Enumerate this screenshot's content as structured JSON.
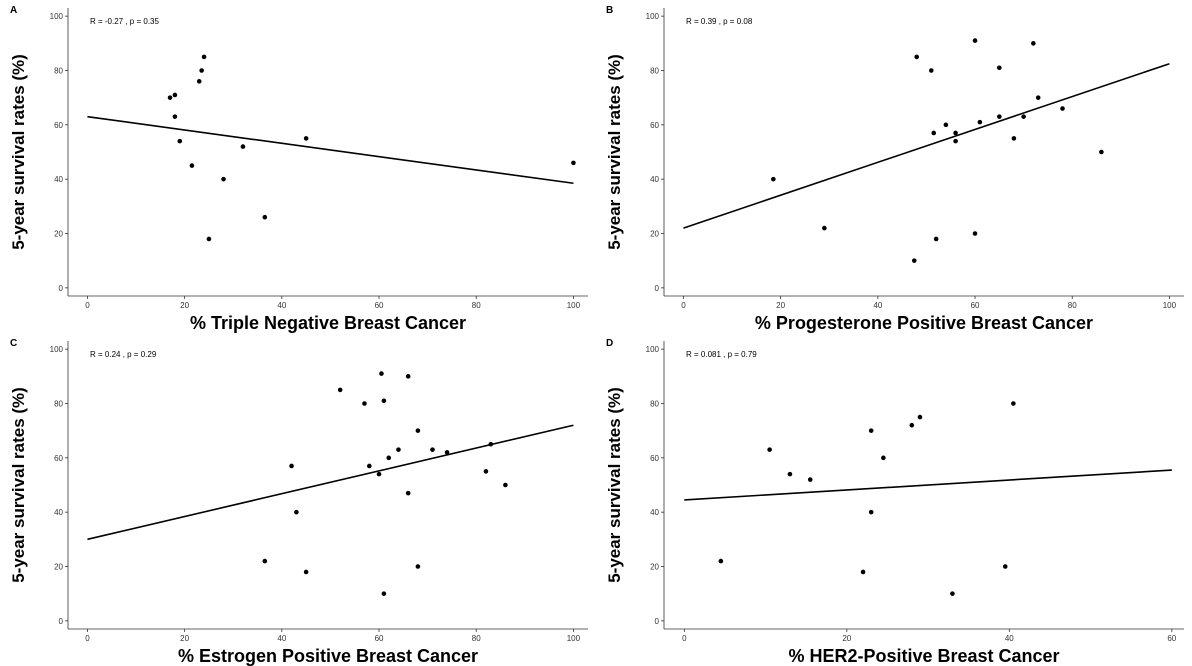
{
  "chart_data": [
    {
      "panel": "A",
      "type": "scatter",
      "stat": "R = -0.27 , p = 0.35",
      "xlabel": "% Triple Negative Breast Cancer",
      "ylabel": "5-year survival rates (%)",
      "xlim": [
        -4,
        103
      ],
      "ylim": [
        -3,
        103
      ],
      "xticks": [
        0,
        20,
        40,
        60,
        80,
        100
      ],
      "yticks": [
        0,
        20,
        40,
        60,
        80,
        100
      ],
      "points": [
        {
          "x": 17,
          "y": 70
        },
        {
          "x": 18,
          "y": 71
        },
        {
          "x": 18,
          "y": 63
        },
        {
          "x": 19,
          "y": 54
        },
        {
          "x": 21.5,
          "y": 45
        },
        {
          "x": 23,
          "y": 76
        },
        {
          "x": 23.5,
          "y": 80
        },
        {
          "x": 24,
          "y": 85
        },
        {
          "x": 25,
          "y": 18
        },
        {
          "x": 28,
          "y": 40
        },
        {
          "x": 32,
          "y": 52
        },
        {
          "x": 36.5,
          "y": 26
        },
        {
          "x": 45,
          "y": 55
        },
        {
          "x": 100,
          "y": 46
        }
      ],
      "regression": {
        "x": [
          0,
          100
        ],
        "y": [
          63,
          38.5
        ]
      },
      "grid": false
    },
    {
      "panel": "B",
      "type": "scatter",
      "stat": "R = 0.39 , p = 0.08",
      "xlabel": "% Progesterone Positive Breast Cancer",
      "ylabel": "5-year survival rates (%)",
      "xlim": [
        -4,
        103
      ],
      "ylim": [
        -3,
        103
      ],
      "xticks": [
        0,
        20,
        40,
        60,
        80,
        100
      ],
      "yticks": [
        0,
        20,
        40,
        60,
        80,
        100
      ],
      "points": [
        {
          "x": 18.5,
          "y": 40
        },
        {
          "x": 29,
          "y": 22
        },
        {
          "x": 47.5,
          "y": 10
        },
        {
          "x": 48,
          "y": 85
        },
        {
          "x": 51,
          "y": 80
        },
        {
          "x": 51.5,
          "y": 57
        },
        {
          "x": 52,
          "y": 18
        },
        {
          "x": 54,
          "y": 60
        },
        {
          "x": 56,
          "y": 57
        },
        {
          "x": 56,
          "y": 54
        },
        {
          "x": 60,
          "y": 91
        },
        {
          "x": 60,
          "y": 20
        },
        {
          "x": 61,
          "y": 61
        },
        {
          "x": 65,
          "y": 81
        },
        {
          "x": 65,
          "y": 63
        },
        {
          "x": 68,
          "y": 55
        },
        {
          "x": 70,
          "y": 63
        },
        {
          "x": 72,
          "y": 90
        },
        {
          "x": 73,
          "y": 70
        },
        {
          "x": 78,
          "y": 66
        },
        {
          "x": 86,
          "y": 50
        }
      ],
      "regression": {
        "x": [
          0,
          100
        ],
        "y": [
          22,
          82.5
        ]
      },
      "grid": false
    },
    {
      "panel": "C",
      "type": "scatter",
      "stat": "R = 0.24 , p = 0.29",
      "xlabel": "% Estrogen Positive Breast Cancer",
      "ylabel": "5-year survival rates (%)",
      "xlim": [
        -4,
        103
      ],
      "ylim": [
        -3,
        103
      ],
      "xticks": [
        0,
        20,
        40,
        60,
        80,
        100
      ],
      "yticks": [
        0,
        20,
        40,
        60,
        80,
        100
      ],
      "points": [
        {
          "x": 36.5,
          "y": 22
        },
        {
          "x": 42,
          "y": 57
        },
        {
          "x": 43,
          "y": 40
        },
        {
          "x": 45,
          "y": 18
        },
        {
          "x": 52,
          "y": 85
        },
        {
          "x": 57,
          "y": 80
        },
        {
          "x": 58,
          "y": 57
        },
        {
          "x": 60,
          "y": 54
        },
        {
          "x": 60.5,
          "y": 91
        },
        {
          "x": 61,
          "y": 81
        },
        {
          "x": 61,
          "y": 10
        },
        {
          "x": 62,
          "y": 60
        },
        {
          "x": 64,
          "y": 63
        },
        {
          "x": 66,
          "y": 90
        },
        {
          "x": 66,
          "y": 47
        },
        {
          "x": 68,
          "y": 70
        },
        {
          "x": 68,
          "y": 20
        },
        {
          "x": 71,
          "y": 63
        },
        {
          "x": 74,
          "y": 62
        },
        {
          "x": 82,
          "y": 55
        },
        {
          "x": 83,
          "y": 65
        },
        {
          "x": 86,
          "y": 50
        }
      ],
      "regression": {
        "x": [
          0,
          100
        ],
        "y": [
          30,
          72
        ]
      },
      "grid": false
    },
    {
      "panel": "D",
      "type": "scatter",
      "stat": "R = 0.081 , p = 0.79",
      "xlabel": "% HER2-Positive Breast Cancer",
      "ylabel": "5-year survival rates (%)",
      "xlim": [
        -2.5,
        61.5
      ],
      "ylim": [
        -3,
        103
      ],
      "xticks": [
        0,
        20,
        40,
        60
      ],
      "yticks": [
        0,
        20,
        40,
        60,
        80,
        100
      ],
      "points": [
        {
          "x": 4.5,
          "y": 22
        },
        {
          "x": 10.5,
          "y": 63
        },
        {
          "x": 13,
          "y": 54
        },
        {
          "x": 15.5,
          "y": 52
        },
        {
          "x": 22,
          "y": 18
        },
        {
          "x": 23,
          "y": 40
        },
        {
          "x": 23,
          "y": 70
        },
        {
          "x": 24.5,
          "y": 60
        },
        {
          "x": 28,
          "y": 72
        },
        {
          "x": 29,
          "y": 75
        },
        {
          "x": 33,
          "y": 10
        },
        {
          "x": 39.5,
          "y": 20
        },
        {
          "x": 40.5,
          "y": 80
        }
      ],
      "regression": {
        "x": [
          0,
          60
        ],
        "y": [
          44.5,
          55.5
        ]
      },
      "grid": false
    }
  ]
}
